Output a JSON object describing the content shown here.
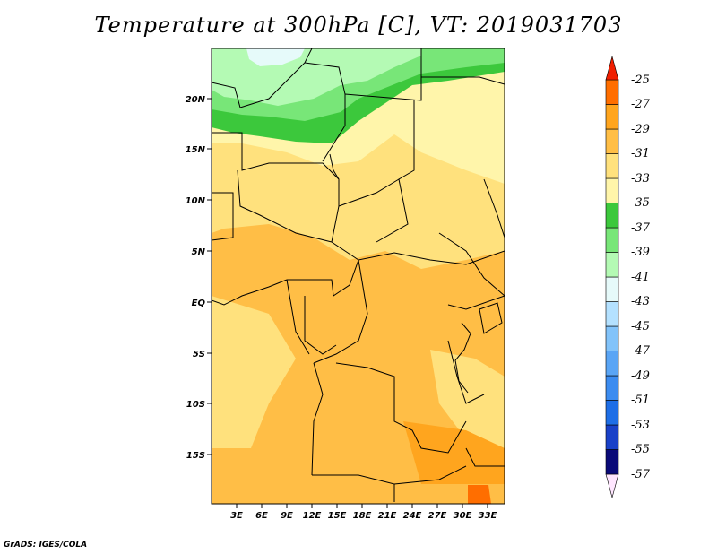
{
  "title": "Temperature at 300hPa [C], VT: 2019031703",
  "credit": "GrADS: IGES/COLA",
  "map": {
    "lat_labels": [
      "20N",
      "15N",
      "10N",
      "5N",
      "EQ",
      "5S",
      "10S",
      "15S"
    ],
    "lon_labels": [
      "3E",
      "6E",
      "9E",
      "12E",
      "15E",
      "18E",
      "21E",
      "24E",
      "27E",
      "30E",
      "33E"
    ]
  },
  "colorbar": {
    "labels": [
      "-25",
      "-27",
      "-29",
      "-31",
      "-33",
      "-35",
      "-37",
      "-39",
      "-41",
      "-43",
      "-45",
      "-47",
      "-49",
      "-51",
      "-53",
      "-55",
      "-57"
    ],
    "colors": [
      "#ffe6ff",
      "#0a0a78",
      "#1941c8",
      "#1e6ee6",
      "#3c8cf0",
      "#5aa5f5",
      "#82c3fa",
      "#b4e1ff",
      "#e6fafa",
      "#b4fab4",
      "#78e678",
      "#3cc83c",
      "#fff5aa",
      "#ffe17d",
      "#ffbe46",
      "#ffa51e",
      "#ff6e00",
      "#f01e00"
    ]
  },
  "regions": {
    "cold_north": "#e6fafa",
    "light_green": "#b4fab4",
    "mid_green": "#78e678",
    "dark_green": "#3cc83c",
    "pale_yellow": "#fff5aa",
    "light_orange": "#ffe17d",
    "orange": "#ffbe46",
    "deep_orange": "#ffa51e",
    "red_orange": "#ff6e00"
  }
}
